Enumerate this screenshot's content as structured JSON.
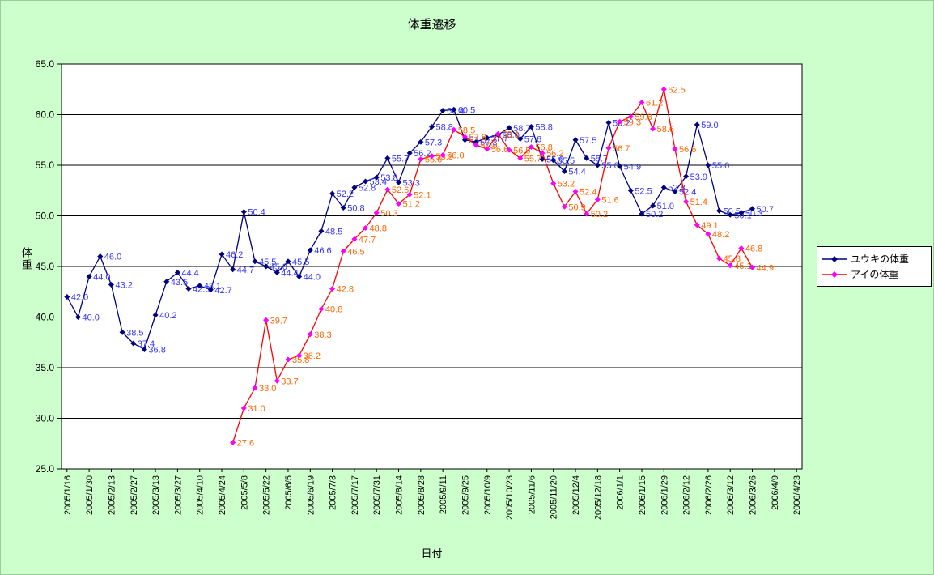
{
  "title": "体重遷移",
  "legend": {
    "entries": [
      {
        "label": "ユウキの体重",
        "line_color": "#000080",
        "marker_color": "#000080"
      },
      {
        "label": "アイの体重",
        "line_color": "#FF0000",
        "marker_color": "#FF00FF"
      }
    ]
  },
  "colors": {
    "background": "#CCFFCC",
    "plot_background": "#FFFFFF",
    "grid": "#000000",
    "axis": "#000000"
  },
  "chart_data": {
    "type": "line",
    "title": "体重遷移",
    "xlabel": "日付",
    "ylabel": "体重",
    "ylim": [
      25.0,
      65.0
    ],
    "y_tick_step": 5.0,
    "y_tick_labels": [
      "25.0",
      "30.0",
      "35.0",
      "40.0",
      "45.0",
      "50.0",
      "55.0",
      "60.0",
      "65.0"
    ],
    "grid": "horizontal",
    "legend_position": "right",
    "category_count": 67,
    "x_tick_every": 2,
    "x_tick_labels": [
      "2005/1/16",
      "2005/1/30",
      "2005/2/13",
      "2005/2/27",
      "2005/3/13",
      "2005/3/27",
      "2005/4/10",
      "2005/4/24",
      "2005/5/8",
      "2005/5/22",
      "2005/6/5",
      "2005/6/19",
      "2005/7/3",
      "2005/7/17",
      "2005/7/31",
      "2005/8/14",
      "2005/8/28",
      "2005/9/11",
      "2005/9/25",
      "2005/10/9",
      "2005/10/23",
      "2005/11/6",
      "2005/11/20",
      "2005/12/4",
      "2005/12/18",
      "2006/1/1",
      "2006/1/15",
      "2006/1/29",
      "2006/2/12",
      "2006/2/26",
      "2006/3/12",
      "2006/3/26",
      "2006/4/9",
      "2006/4/23"
    ],
    "series": [
      {
        "name": "ユウキの体重",
        "start_index": 0,
        "line_color": "#000080",
        "marker_color": "#000080",
        "label_color": "#3333FF",
        "values": [
          42.0,
          40.0,
          44.0,
          46.0,
          43.2,
          38.5,
          37.4,
          36.8,
          40.2,
          43.5,
          44.4,
          42.8,
          43.1,
          42.7,
          46.2,
          44.7,
          50.4,
          45.5,
          45.0,
          44.4,
          45.5,
          44.0,
          46.6,
          48.5,
          52.2,
          50.8,
          52.8,
          53.4,
          53.8,
          55.7,
          53.3,
          56.2,
          57.3,
          58.8,
          60.4,
          60.5,
          57.5,
          57.3,
          57.7,
          58.0,
          58.7,
          57.6,
          58.8,
          55.6,
          55.5,
          54.4,
          57.5,
          55.7,
          55.0,
          59.2,
          54.9,
          52.5,
          50.2,
          51.0,
          52.8,
          52.4,
          53.9,
          59.0,
          55.0,
          50.5,
          50.1,
          50.3,
          50.7
        ]
      },
      {
        "name": "アイの体重",
        "start_index": 15,
        "line_color": "#FF0000",
        "marker_color": "#FF00FF",
        "label_color": "#FF6600",
        "values": [
          27.6,
          31.0,
          33.0,
          39.7,
          33.7,
          35.8,
          36.2,
          38.3,
          40.8,
          42.8,
          46.5,
          47.7,
          48.8,
          50.3,
          52.6,
          51.2,
          52.1,
          55.6,
          55.9,
          56.0,
          58.5,
          57.8,
          57.0,
          56.6,
          58.1,
          56.5,
          55.7,
          56.8,
          56.2,
          53.2,
          50.9,
          52.4,
          50.2,
          51.6,
          56.7,
          59.3,
          59.8,
          61.2,
          58.6,
          62.5,
          56.6,
          51.4,
          49.1,
          48.2,
          45.8,
          45.1,
          46.8,
          44.9
        ]
      }
    ]
  }
}
